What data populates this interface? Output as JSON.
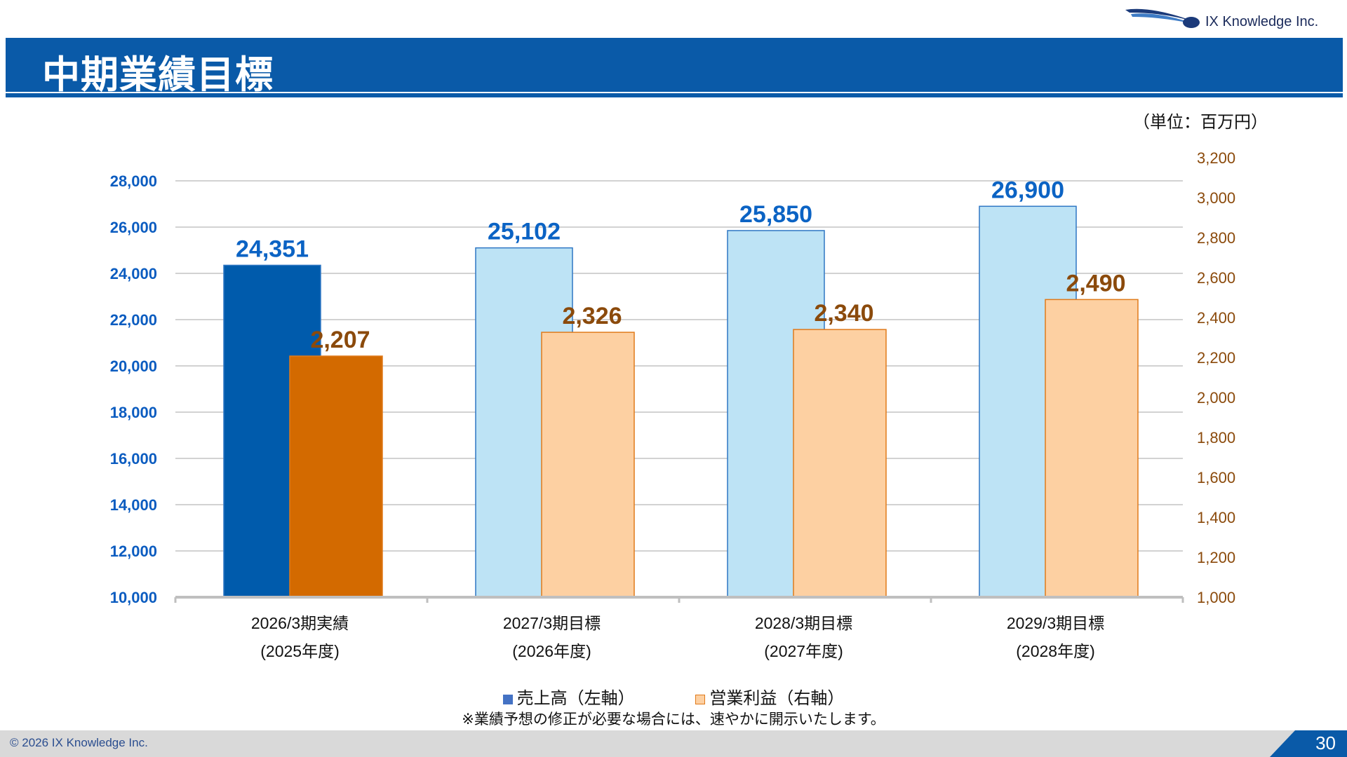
{
  "header": {
    "title": "中期業績目標",
    "logo_text": "IX Knowledge Inc."
  },
  "unit_label": "（単位：百万円）",
  "chart_data": {
    "type": "bar",
    "categories": [
      [
        "2026/3期実績",
        "(2025年度)"
      ],
      [
        "2027/3期目標",
        "(2026年度)"
      ],
      [
        "2028/3期目標",
        "(2027年度)"
      ],
      [
        "2029/3期目標",
        "(2028年度)"
      ]
    ],
    "series": [
      {
        "name": "売上高（左軸）",
        "axis": "left",
        "values": [
          24351,
          25102,
          25850,
          26900
        ],
        "labels": [
          "24,351",
          "25,102",
          "25,850",
          "26,900"
        ],
        "colors": [
          "#005bac",
          "#bde3f5",
          "#bde3f5",
          "#bde3f5"
        ],
        "border": "#2f77c4",
        "label_color": "#0b63c4"
      },
      {
        "name": "営業利益（右軸）",
        "axis": "right",
        "values": [
          2207,
          2326,
          2340,
          2490
        ],
        "labels": [
          "2,207",
          "2,326",
          "2,340",
          "2,490"
        ],
        "colors": [
          "#d36a00",
          "#fdd0a2",
          "#fdd0a2",
          "#fdd0a2"
        ],
        "border": "#e07a1a",
        "label_color": "#8b4a0b"
      }
    ],
    "left_axis": {
      "min": 10000,
      "max": 28000,
      "step": 2000,
      "ticks": [
        "10,000",
        "12,000",
        "14,000",
        "16,000",
        "18,000",
        "20,000",
        "22,000",
        "24,000",
        "26,000",
        "28,000"
      ],
      "color": "#0b5cc0"
    },
    "right_axis": {
      "min": 1000,
      "max": 3200,
      "step": 200,
      "ticks": [
        "1,000",
        "1,200",
        "1,400",
        "1,600",
        "1,800",
        "2,000",
        "2,200",
        "2,400",
        "2,600",
        "2,800",
        "3,000",
        "3,200"
      ],
      "color": "#8b4a0b"
    },
    "grid": true,
    "legend_position": "bottom"
  },
  "legend": {
    "sales": {
      "label": "売上高（左軸）",
      "color": "#4472c4"
    },
    "profit": {
      "label": "営業利益（右軸）",
      "color": "#fdd0a2"
    }
  },
  "note": "※業績予想の修正が必要な場合には、速やかに開示いたします。",
  "footer": {
    "copyright": "© 2026 IX Knowledge Inc.",
    "page": "30"
  }
}
